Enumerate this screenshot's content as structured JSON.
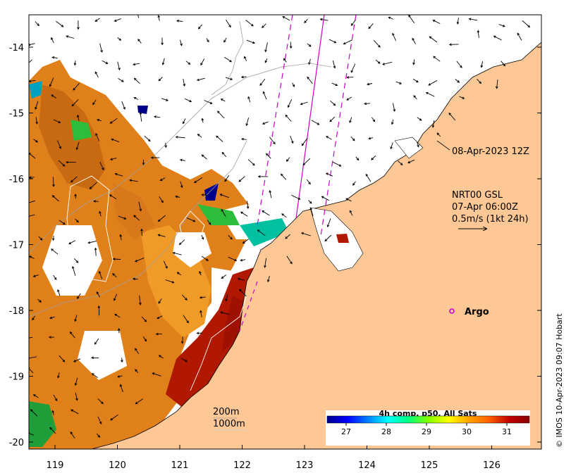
{
  "map": {
    "x_ticks": [
      "119",
      "120",
      "121",
      "122",
      "123",
      "124",
      "125",
      "126"
    ],
    "y_ticks": [
      "-14",
      "-15",
      "-16",
      "-17",
      "-18",
      "-19",
      "-20"
    ],
    "land_color": "#fdc895",
    "annotations": {
      "track_time": "08-Apr-2023 12Z",
      "current_source": "NRT00 GSL",
      "current_time": "07-Apr 06:00Z",
      "current_scale": "0.5m/s (1kt 24h)",
      "argo_label": "Argo"
    },
    "isobaths": [
      "200m",
      "1000m"
    ],
    "colorbar": {
      "title": "4h comp, p50, All Sats",
      "ticks": [
        "27",
        "28",
        "29",
        "30",
        "31"
      ],
      "colors": [
        "#00008b",
        "#0000ff",
        "#0080ff",
        "#00ffff",
        "#00ff80",
        "#80ff00",
        "#ffff00",
        "#ffa500",
        "#ff6000",
        "#c00000",
        "#8b0000"
      ]
    },
    "credit": "© IMOS 10-Apr-2023 09:07 Hobart"
  }
}
